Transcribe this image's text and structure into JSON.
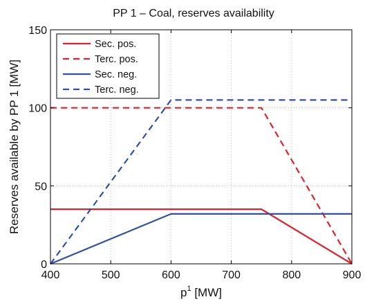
{
  "chart_data": {
    "type": "line",
    "title": "PP 1 – Coal, reserves availability",
    "xlabel": {
      "base": "p",
      "superscript": "1",
      "suffix": " [MW]"
    },
    "ylabel": "Reserves available by PP 1 [MW]",
    "xlim": [
      400,
      900
    ],
    "ylim": [
      0,
      150
    ],
    "xticks": [
      400,
      500,
      600,
      700,
      800,
      900
    ],
    "yticks": [
      0,
      50,
      100,
      150
    ],
    "grid": true,
    "legend_position": "top-left",
    "series": [
      {
        "name": "Sec. pos.",
        "color": "#e0202a",
        "dash": "solid",
        "x": [
          400,
          750,
          900
        ],
        "y": [
          35,
          35,
          0
        ]
      },
      {
        "name": "Terc. pos.",
        "color": "#e0202a",
        "dash": "dashed",
        "x": [
          400,
          750,
          900
        ],
        "y": [
          100,
          100,
          0
        ]
      },
      {
        "name": "Sec. neg.",
        "color": "#3050a8",
        "dash": "solid",
        "x": [
          400,
          600,
          900
        ],
        "y": [
          0,
          32,
          32
        ]
      },
      {
        "name": "Terc. neg.",
        "color": "#3050a8",
        "dash": "dashed",
        "x": [
          400,
          600,
          900
        ],
        "y": [
          0,
          105,
          105
        ]
      }
    ]
  }
}
